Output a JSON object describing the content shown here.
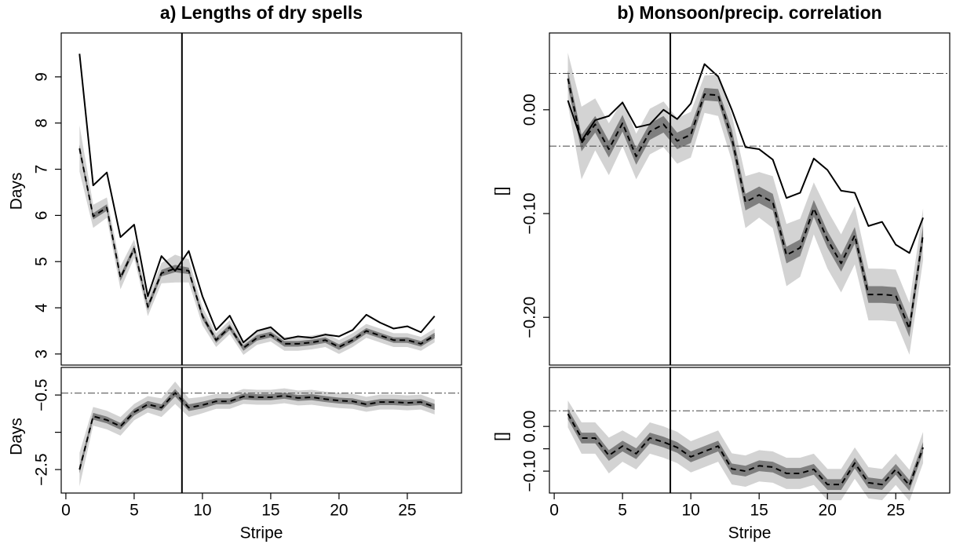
{
  "chart_data": [
    {
      "type": "line",
      "title": "a) Lengths of dry spells",
      "ylabel": "Days",
      "x": [
        1,
        2,
        3,
        4,
        5,
        6,
        7,
        8,
        9,
        10,
        11,
        12,
        13,
        14,
        15,
        16,
        17,
        18,
        19,
        20,
        21,
        22,
        23,
        24,
        25,
        26,
        27
      ],
      "xlim": [
        -0.34,
        28.97
      ],
      "ylim": [
        2.76,
        9.95
      ],
      "yticks": [
        3,
        4,
        5,
        6,
        7,
        8,
        9
      ],
      "vline": 8.5,
      "hlines": [],
      "series": [
        {
          "color": "#000000",
          "style": "solid",
          "values": [
            9.5,
            6.65,
            6.93,
            5.53,
            5.8,
            4.25,
            5.12,
            4.8,
            5.23,
            4.25,
            3.52,
            3.83,
            3.25,
            3.5,
            3.58,
            3.32,
            3.38,
            3.35,
            3.42,
            3.38,
            3.52,
            3.85,
            3.68,
            3.55,
            3.6,
            3.47,
            3.82
          ]
        },
        {
          "color": "#000000",
          "style": "dashed",
          "band_colors": [
            "#d3d3d3",
            "#7f7f7f"
          ],
          "values": [
            7.45,
            5.98,
            6.17,
            4.65,
            5.28,
            4.02,
            4.75,
            4.85,
            4.8,
            3.82,
            3.3,
            3.58,
            3.13,
            3.35,
            3.42,
            3.22,
            3.22,
            3.25,
            3.3,
            3.15,
            3.3,
            3.5,
            3.4,
            3.3,
            3.3,
            3.22,
            3.4
          ],
          "error_outer": [
            0.5,
            0.25,
            0.22,
            0.25,
            0.2,
            0.2,
            0.22,
            0.3,
            0.25,
            0.2,
            0.15,
            0.15,
            0.15,
            0.15,
            0.15,
            0.15,
            0.15,
            0.15,
            0.15,
            0.15,
            0.15,
            0.15,
            0.15,
            0.15,
            0.15,
            0.15,
            0.15
          ],
          "error_inner": [
            0.08,
            0.07,
            0.07,
            0.07,
            0.07,
            0.07,
            0.07,
            0.08,
            0.07,
            0.07,
            0.06,
            0.06,
            0.06,
            0.06,
            0.06,
            0.06,
            0.06,
            0.06,
            0.06,
            0.06,
            0.06,
            0.06,
            0.06,
            0.06,
            0.06,
            0.06,
            0.06
          ]
        }
      ]
    },
    {
      "type": "line",
      "title": "b) Monsoon/precip. correlation",
      "ylabel": "[]",
      "x": [
        1,
        2,
        3,
        4,
        5,
        6,
        7,
        8,
        9,
        10,
        11,
        12,
        13,
        14,
        15,
        16,
        17,
        18,
        19,
        20,
        21,
        22,
        23,
        24,
        25,
        26,
        27
      ],
      "xlim": [
        -0.35,
        28.95
      ],
      "ylim": [
        -0.246,
        0.074
      ],
      "yticks": [
        {
          "value": 0,
          "label": "0.00"
        },
        {
          "value": -0.1,
          "label": "−0.10"
        },
        {
          "value": -0.2,
          "label": "−0.20"
        }
      ],
      "vline": 8.5,
      "hlines": [
        0.035,
        -0.035
      ],
      "series": [
        {
          "color": "#000000",
          "style": "solid",
          "values": [
            0.009,
            -0.03,
            -0.01,
            -0.006,
            0.007,
            -0.017,
            -0.014,
            0.0,
            -0.009,
            0.006,
            0.044,
            0.032,
            0.0,
            -0.036,
            -0.038,
            -0.048,
            -0.085,
            -0.08,
            -0.047,
            -0.058,
            -0.078,
            -0.08,
            -0.112,
            -0.108,
            -0.13,
            -0.138,
            -0.104
          ]
        },
        {
          "color": "#000000",
          "style": "dashed",
          "band_colors": [
            "#d3d3d3",
            "#7f7f7f"
          ],
          "values": [
            0.03,
            -0.032,
            -0.014,
            -0.038,
            -0.013,
            -0.045,
            -0.021,
            -0.014,
            -0.03,
            -0.024,
            0.015,
            0.014,
            -0.027,
            -0.089,
            -0.082,
            -0.089,
            -0.14,
            -0.133,
            -0.095,
            -0.125,
            -0.148,
            -0.121,
            -0.178,
            -0.178,
            -0.179,
            -0.211,
            -0.12
          ],
          "error_outer": [
            0.025,
            0.035,
            0.025,
            0.025,
            0.022,
            0.022,
            0.022,
            0.022,
            0.022,
            0.022,
            0.018,
            0.02,
            0.022,
            0.025,
            0.022,
            0.025,
            0.03,
            0.028,
            0.025,
            0.028,
            0.028,
            0.028,
            0.025,
            0.025,
            0.025,
            0.025,
            0.025
          ],
          "error_inner": [
            0.008,
            0.008,
            0.008,
            0.008,
            0.008,
            0.008,
            0.008,
            0.008,
            0.008,
            0.008,
            0.006,
            0.006,
            0.008,
            0.008,
            0.008,
            0.008,
            0.008,
            0.008,
            0.008,
            0.008,
            0.008,
            0.008,
            0.008,
            0.008,
            0.008,
            0.008,
            0.008
          ]
        }
      ]
    },
    {
      "type": "line",
      "ylabel": "Days",
      "xlabel": "Stripe",
      "x": [
        1,
        2,
        3,
        4,
        5,
        6,
        7,
        8,
        9,
        10,
        11,
        12,
        13,
        14,
        15,
        16,
        17,
        18,
        19,
        20,
        21,
        22,
        23,
        24,
        25,
        26,
        27
      ],
      "xlim": [
        -0.34,
        28.97
      ],
      "xticks": [
        0,
        5,
        10,
        15,
        20,
        25
      ],
      "ylim": [
        -3.13,
        0.24
      ],
      "yticks": [
        {
          "value": -2.5,
          "label": "−2.5"
        },
        {
          "value": -0.5,
          "label": "−0.5"
        }
      ],
      "minor_yticks": [
        -1.5
      ],
      "vline": 8.5,
      "hlines": [
        -0.45
      ],
      "series": [
        {
          "color": "#000000",
          "style": "dashed",
          "band_colors": [
            "#d3d3d3",
            "#7f7f7f"
          ],
          "values": [
            -2.5,
            -1.07,
            -1.17,
            -1.34,
            -0.96,
            -0.75,
            -0.84,
            -0.44,
            -0.84,
            -0.77,
            -0.67,
            -0.67,
            -0.54,
            -0.56,
            -0.56,
            -0.52,
            -0.58,
            -0.56,
            -0.61,
            -0.65,
            -0.67,
            -0.75,
            -0.69,
            -0.69,
            -0.71,
            -0.69,
            -0.82
          ],
          "error_outer": [
            0.45,
            0.25,
            0.25,
            0.25,
            0.22,
            0.22,
            0.25,
            0.3,
            0.25,
            0.22,
            0.2,
            0.2,
            0.2,
            0.2,
            0.2,
            0.2,
            0.2,
            0.2,
            0.2,
            0.2,
            0.2,
            0.2,
            0.2,
            0.2,
            0.2,
            0.2,
            0.2
          ],
          "error_inner": [
            0.1,
            0.09,
            0.09,
            0.09,
            0.09,
            0.09,
            0.09,
            0.1,
            0.09,
            0.09,
            0.08,
            0.08,
            0.08,
            0.08,
            0.08,
            0.08,
            0.08,
            0.08,
            0.08,
            0.08,
            0.08,
            0.08,
            0.08,
            0.08,
            0.08,
            0.08,
            0.08
          ]
        }
      ]
    },
    {
      "type": "line",
      "ylabel": "[]",
      "xlabel": "Stripe",
      "x": [
        1,
        2,
        3,
        4,
        5,
        6,
        7,
        8,
        9,
        10,
        11,
        12,
        13,
        14,
        15,
        16,
        17,
        18,
        19,
        20,
        21,
        22,
        23,
        24,
        25,
        26,
        27
      ],
      "xlim": [
        -0.35,
        28.95
      ],
      "xticks": [
        0,
        5,
        10,
        15,
        20,
        25
      ],
      "ylim": [
        -0.149,
        0.132
      ],
      "yticks": [
        {
          "value": 0,
          "label": "0.00"
        },
        {
          "value": -0.1,
          "label": "−0.10"
        }
      ],
      "minor_yticks": [
        -0.05
      ],
      "vline": 8.5,
      "hlines": [
        0.035
      ],
      "series": [
        {
          "color": "#000000",
          "style": "dashed",
          "band_colors": [
            "#d3d3d3",
            "#7f7f7f"
          ],
          "values": [
            0.028,
            -0.026,
            -0.026,
            -0.065,
            -0.044,
            -0.061,
            -0.026,
            -0.035,
            -0.047,
            -0.068,
            -0.056,
            -0.044,
            -0.095,
            -0.1,
            -0.088,
            -0.091,
            -0.105,
            -0.105,
            -0.096,
            -0.13,
            -0.13,
            -0.082,
            -0.126,
            -0.13,
            -0.096,
            -0.132,
            -0.047
          ],
          "error_outer": [
            0.03,
            0.035,
            0.035,
            0.04,
            0.035,
            0.035,
            0.035,
            0.035,
            0.035,
            0.035,
            0.035,
            0.035,
            0.035,
            0.035,
            0.035,
            0.035,
            0.035,
            0.035,
            0.035,
            0.035,
            0.035,
            0.035,
            0.035,
            0.035,
            0.035,
            0.035,
            0.035
          ],
          "error_inner": [
            0.012,
            0.012,
            0.012,
            0.012,
            0.012,
            0.012,
            0.012,
            0.012,
            0.012,
            0.012,
            0.012,
            0.012,
            0.012,
            0.012,
            0.012,
            0.012,
            0.012,
            0.012,
            0.012,
            0.012,
            0.012,
            0.012,
            0.012,
            0.012,
            0.012,
            0.012,
            0.012
          ]
        }
      ]
    }
  ]
}
